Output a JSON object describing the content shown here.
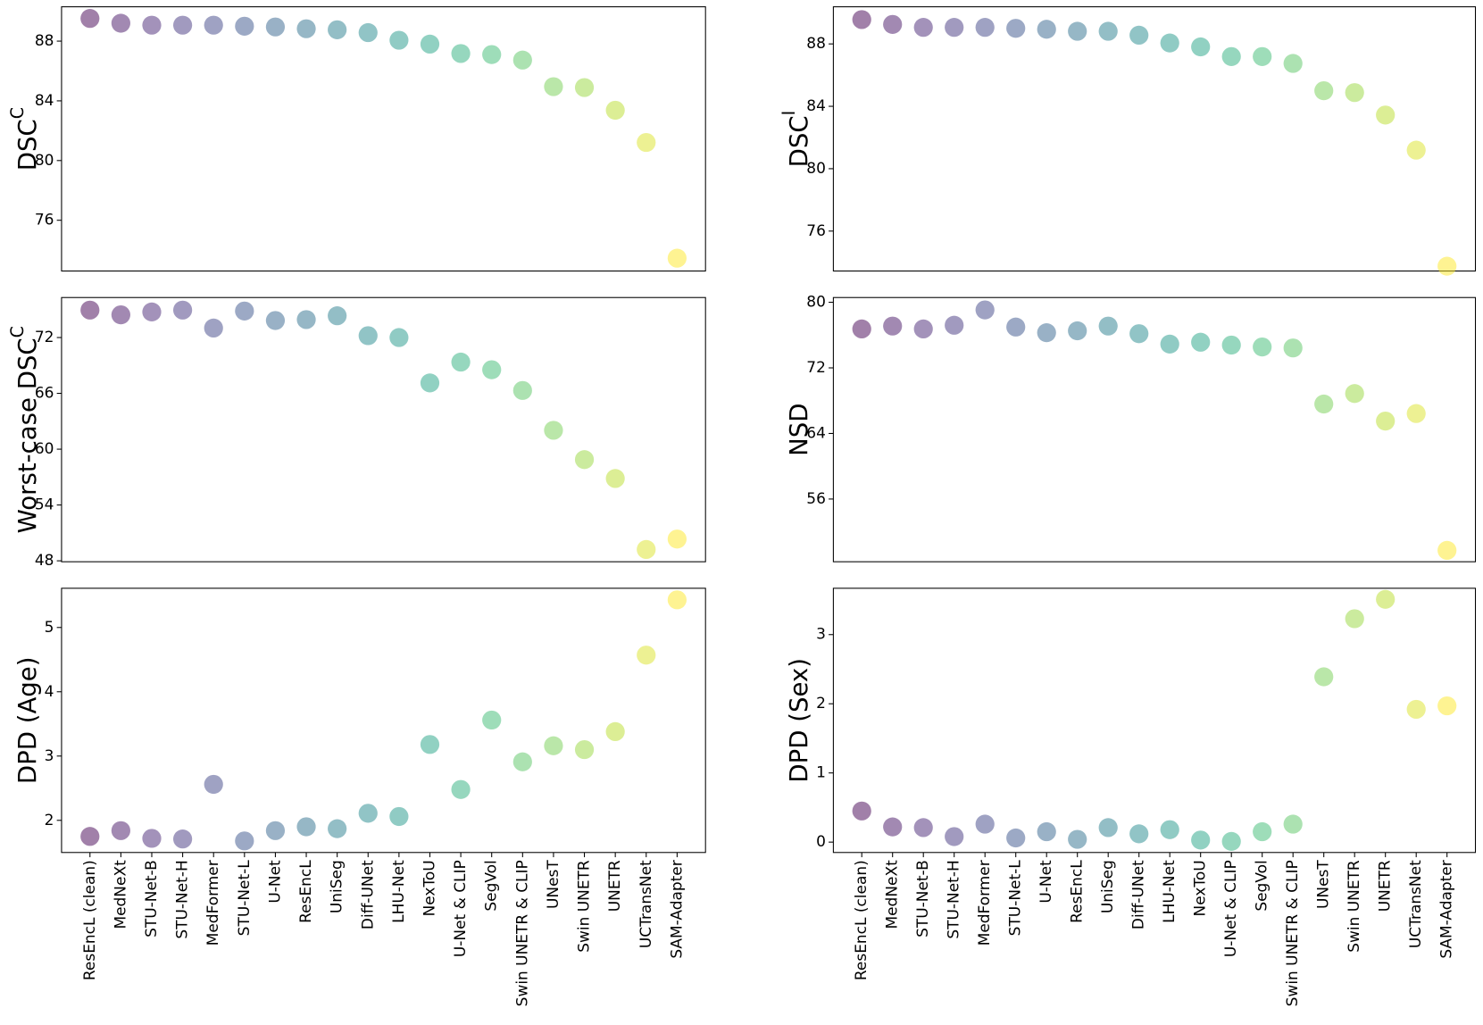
{
  "chart_data": [
    {
      "type": "scatter",
      "colormap": "viridis",
      "alpha": 0.5,
      "categories": [
        "ResEncL (clean)",
        "MedNeXt",
        "STU-Net-B",
        "STU-Net-H",
        "MedFormer",
        "STU-Net-L",
        "U-Net",
        "ResEncL",
        "UniSeg",
        "Diff-UNet",
        "LHU-Net",
        "NexToU",
        "U-Net & CLIP",
        "SegVol",
        "Swin UNETR & CLIP",
        "UNesT",
        "Swin UNETR",
        "UNETR",
        "UCTransNet",
        "SAM-Adapter"
      ],
      "panels": [
        {
          "ylabel": "DSC",
          "ylabel_superscript": "C",
          "ylim": [
            72.6,
            90.3
          ],
          "yticks": [
            76,
            80,
            84,
            88
          ],
          "values": [
            89.52,
            89.2,
            89.07,
            89.07,
            89.07,
            89.0,
            88.95,
            88.83,
            88.76,
            88.57,
            88.06,
            87.8,
            87.17,
            87.1,
            86.73,
            84.95,
            84.89,
            83.37,
            81.21,
            73.46
          ]
        },
        {
          "ylabel": "Worst-case DSC",
          "ylabel_superscript": "C",
          "ylim": [
            47.9,
            76.3
          ],
          "yticks": [
            48,
            54,
            60,
            66,
            72
          ],
          "values": [
            74.95,
            74.44,
            74.75,
            74.95,
            73.02,
            74.85,
            73.83,
            73.93,
            74.34,
            72.2,
            72.0,
            67.12,
            69.36,
            68.54,
            66.31,
            62.03,
            58.88,
            56.85,
            49.22,
            50.34
          ]
        },
        {
          "ylabel": "DPD (Age)",
          "ylim": [
            1.5,
            5.61
          ],
          "yticks": [
            2,
            3,
            4,
            5
          ],
          "values": [
            1.75,
            1.84,
            1.72,
            1.71,
            2.56,
            1.68,
            1.84,
            1.9,
            1.87,
            2.11,
            2.06,
            3.18,
            2.48,
            3.56,
            2.91,
            3.16,
            3.1,
            3.38,
            4.57,
            5.43
          ]
        }
      ]
    },
    {
      "type": "scatter",
      "colormap": "viridis",
      "alpha": 0.5,
      "categories": [
        "ResEncL (clean)",
        "MedNeXt",
        "STU-Net-B",
        "STU-Net-H",
        "MedFormer",
        "STU-Net-L",
        "U-Net",
        "ResEncL",
        "UniSeg",
        "Diff-UNet",
        "LHU-Net",
        "NexToU",
        "U-Net & CLIP",
        "SegVol",
        "Swin UNETR & CLIP",
        "UNesT",
        "Swin UNETR",
        "UNETR",
        "UCTransNet",
        "SAM-Adapter"
      ],
      "panels": [
        {
          "ylabel": "DSC",
          "ylabel_superscript": "I",
          "ylim": [
            73.44,
            90.38
          ],
          "yticks": [
            76,
            80,
            84,
            88
          ],
          "values": [
            89.56,
            89.25,
            89.06,
            89.06,
            89.06,
            89.0,
            88.94,
            88.81,
            88.81,
            88.56,
            88.06,
            87.81,
            87.19,
            87.19,
            86.75,
            85.0,
            84.88,
            83.44,
            81.19,
            73.75
          ]
        },
        {
          "ylabel": "NSD",
          "ylim": [
            48.35,
            80.58
          ],
          "yticks": [
            56,
            64,
            72,
            80
          ],
          "values": [
            76.75,
            77.1,
            76.75,
            77.2,
            79.07,
            76.98,
            76.29,
            76.52,
            77.1,
            76.17,
            74.9,
            75.13,
            74.78,
            74.55,
            74.43,
            67.59,
            68.87,
            65.51,
            66.43,
            49.74
          ]
        },
        {
          "ylabel": "DPD (Sex)",
          "ylim": [
            -0.15,
            3.67
          ],
          "yticks": [
            0,
            1,
            2,
            3
          ],
          "values": [
            0.45,
            0.22,
            0.21,
            0.08,
            0.26,
            0.06,
            0.15,
            0.04,
            0.21,
            0.12,
            0.18,
            0.03,
            0.01,
            0.15,
            0.26,
            2.39,
            3.23,
            3.51,
            1.92,
            1.97
          ]
        }
      ]
    }
  ]
}
